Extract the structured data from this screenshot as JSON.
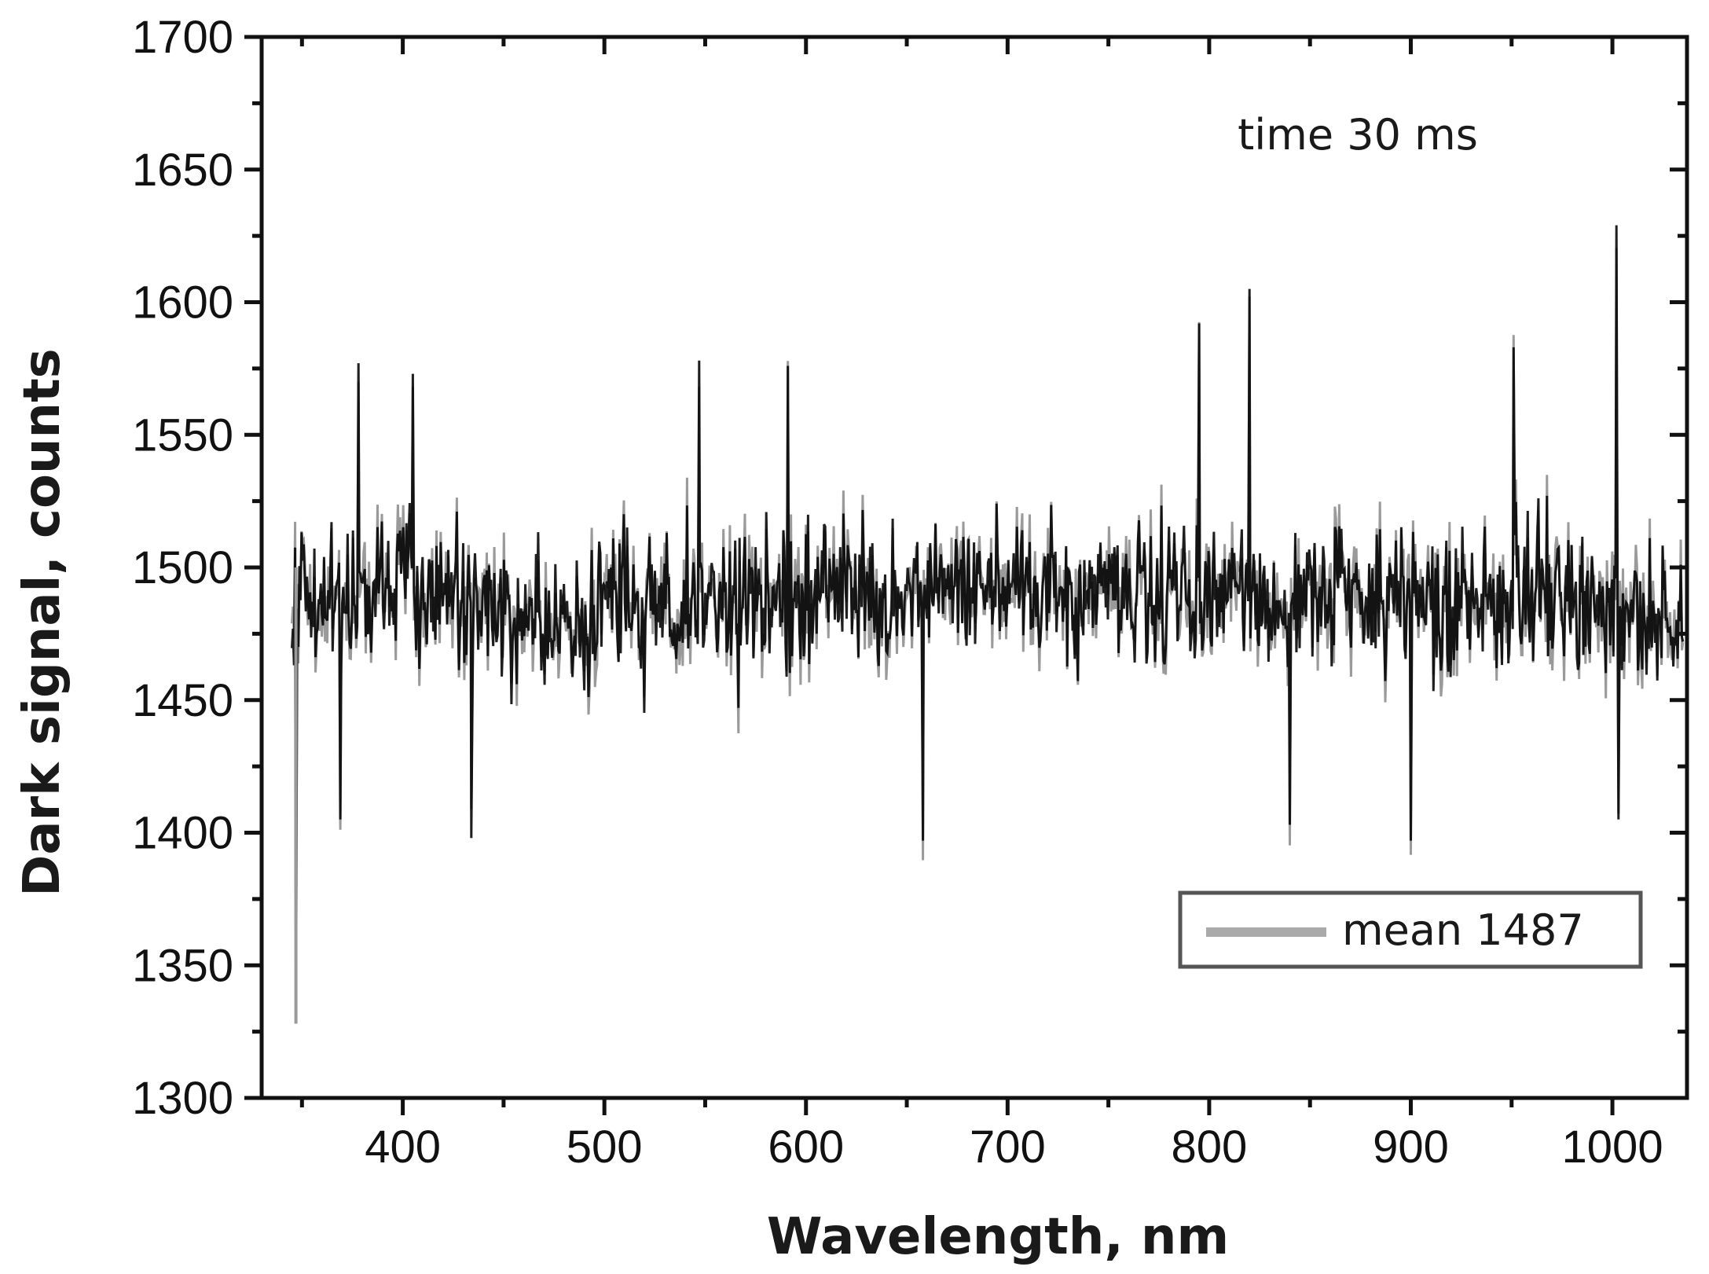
{
  "chart_data": {
    "type": "line",
    "title": "",
    "xlabel": "Wavelength, nm",
    "ylabel": "Dark signal, counts",
    "xlim": [
      330,
      1037
    ],
    "ylim": [
      1300,
      1700
    ],
    "xticks": [
      400,
      500,
      600,
      700,
      800,
      900,
      1000
    ],
    "xtick_labels": [
      "400",
      "500",
      "600",
      "700",
      "800",
      "900",
      "1000"
    ],
    "yticks": [
      1300,
      1350,
      1400,
      1450,
      1500,
      1550,
      1600,
      1650,
      1700
    ],
    "ytick_labels": [
      "1300",
      "1350",
      "1400",
      "1450",
      "1500",
      "1550",
      "1600",
      "1650",
      "1700"
    ],
    "annotation": "time 30 ms",
    "legend": {
      "label": "mean 1487",
      "position": "bottom-right"
    },
    "series_style": {
      "noise_color": "#000000",
      "gray_color": "#9a9a9a"
    },
    "series": [
      {
        "name": "dark signal",
        "mean": 1487,
        "x_start": 345,
        "x_end": 1035,
        "samples": 1300,
        "typical_range": [
          1430,
          1545
        ],
        "notable_points": [
          {
            "x": 347,
            "y": 1328
          },
          {
            "x": 369,
            "y": 1405
          },
          {
            "x": 378,
            "y": 1577
          },
          {
            "x": 405,
            "y": 1573
          },
          {
            "x": 434,
            "y": 1398
          },
          {
            "x": 547,
            "y": 1578
          },
          {
            "x": 591,
            "y": 1576
          },
          {
            "x": 658,
            "y": 1397
          },
          {
            "x": 795,
            "y": 1592
          },
          {
            "x": 820,
            "y": 1605
          },
          {
            "x": 840,
            "y": 1403
          },
          {
            "x": 900,
            "y": 1397
          },
          {
            "x": 951,
            "y": 1583
          },
          {
            "x": 1002,
            "y": 1629
          },
          {
            "x": 1003,
            "y": 1405
          }
        ]
      }
    ]
  }
}
